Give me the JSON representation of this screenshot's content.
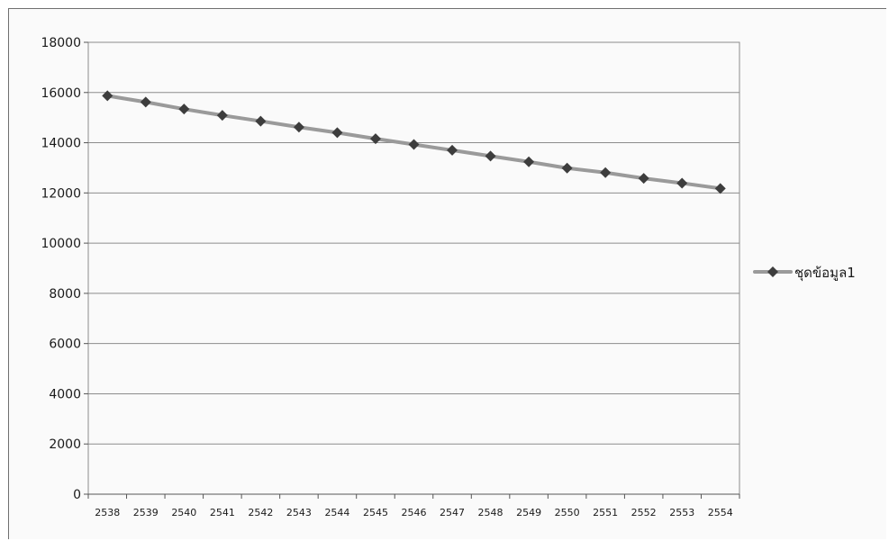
{
  "chart_data": {
    "type": "line",
    "x": [
      "2538",
      "2539",
      "2540",
      "2541",
      "2542",
      "2543",
      "2544",
      "2545",
      "2546",
      "2547",
      "2548",
      "2549",
      "2550",
      "2551",
      "2552",
      "2553",
      "2554"
    ],
    "series": [
      {
        "name": "ชุดข้อมูล1",
        "values": [
          15870,
          15620,
          15340,
          15090,
          14860,
          14620,
          14400,
          14160,
          13930,
          13700,
          13470,
          13240,
          12990,
          12810,
          12580,
          12390,
          12180
        ]
      }
    ],
    "ylim": [
      0,
      18000
    ],
    "yticks": [
      0,
      2000,
      4000,
      6000,
      8000,
      10000,
      12000,
      14000,
      16000,
      18000
    ],
    "grid": true,
    "legend": "right",
    "colors": {
      "line": "#9a9a9a",
      "marker": "#3d3d3d",
      "grid": "#8c8c8c"
    }
  }
}
